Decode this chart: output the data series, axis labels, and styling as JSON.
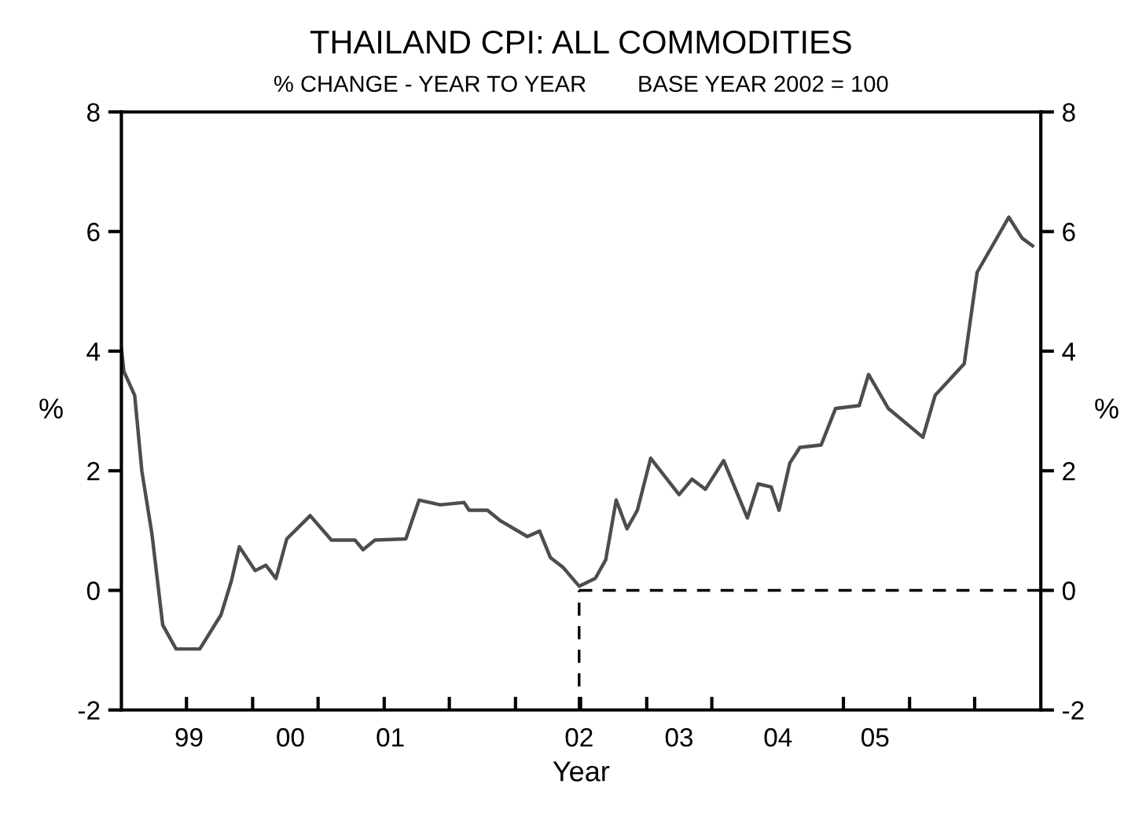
{
  "chart_data": {
    "type": "line",
    "title": "THAILAND CPI: ALL COMMODITIES",
    "subtitle": "% CHANGE - YEAR TO YEAR        BASE YEAR 2002 = 100",
    "xlabel": "Year",
    "ylabel": "%",
    "y2label": "%",
    "series": [
      {
        "color": "#4d4d4d",
        "x": [
          "1999-01-01",
          "1999-01-08",
          "1999-02-07",
          "1999-02-27",
          "1999-03-27",
          "1999-04-26",
          "1999-06-02",
          "1999-08-07",
          "1999-10-05",
          "1999-11-03",
          "1999-11-25",
          "2000-01-08",
          "2000-02-07",
          "2000-03-06",
          "2000-04-05",
          "2000-06-09",
          "2000-08-07",
          "2000-10-12",
          "2000-11-03",
          "2000-12-06",
          "2001-03-02",
          "2001-04-08",
          "2001-06-06",
          "2001-08-11",
          "2001-08-25",
          "2001-10-15",
          "2001-11-21",
          "2002-02-03",
          "2002-03-09",
          "2002-04-08",
          "2002-05-14",
          "2002-06-27",
          "2002-08-11",
          "2002-09-09",
          "2002-10-08",
          "2002-11-07",
          "2002-12-06",
          "2003-01-12",
          "2003-04-01",
          "2003-05-07",
          "2003-06-13",
          "2003-08-03",
          "2003-10-08",
          "2003-11-07",
          "2003-12-13",
          "2004-01-04",
          "2004-02-03",
          "2004-03-02",
          "2004-04-30",
          "2004-06-09",
          "2004-08-14",
          "2004-09-09",
          "2004-11-03",
          "2005-02-07",
          "2005-03-13",
          "2005-06-02",
          "2005-07-08",
          "2005-10-04",
          "2005-11-10",
          "2005-12-09"
        ],
        "values": [
          4.05,
          3.66,
          3.26,
          1.99,
          0.94,
          -0.58,
          -0.98,
          -0.98,
          -0.41,
          0.16,
          0.73,
          0.33,
          0.42,
          0.2,
          0.86,
          1.25,
          0.84,
          0.84,
          0.68,
          0.84,
          0.86,
          1.51,
          1.43,
          1.47,
          1.34,
          1.34,
          1.16,
          0.9,
          0.99,
          0.55,
          0.38,
          0.07,
          0.2,
          0.51,
          1.51,
          1.03,
          1.34,
          2.21,
          1.6,
          1.86,
          1.69,
          2.17,
          1.21,
          1.78,
          1.73,
          1.34,
          2.13,
          2.39,
          2.43,
          3.04,
          3.09,
          3.61,
          3.04,
          2.56,
          3.26,
          3.79,
          5.32,
          6.24,
          5.89,
          5.76
        ]
      }
    ],
    "xlim": [
      "1999-01-01",
      "2006-01-01"
    ],
    "xticks": [
      {
        "value": "1999-07-08",
        "label": "99"
      },
      {
        "value": "2000-04-15",
        "label": "00"
      },
      {
        "value": "2001-01-18",
        "label": "01"
      },
      {
        "value": "2002-06-27",
        "label": "02"
      },
      {
        "value": "2003-04-01",
        "label": "03"
      },
      {
        "value": "2004-01-01",
        "label": "04"
      },
      {
        "value": "2004-09-27",
        "label": "05"
      },
      {
        "value": "1999-07-01",
        "label": null
      },
      {
        "value": "2000-01-01",
        "label": null
      },
      {
        "value": "2000-07-01",
        "label": null
      },
      {
        "value": "2001-01-01",
        "label": null
      },
      {
        "value": "2001-07-01",
        "label": null
      },
      {
        "value": "2002-01-01",
        "label": null
      },
      {
        "value": "2002-07-01",
        "label": null
      },
      {
        "value": "2003-01-01",
        "label": null
      },
      {
        "value": "2003-07-01",
        "label": null
      },
      {
        "value": "2004-07-01",
        "label": null
      },
      {
        "value": "2005-01-01",
        "label": null
      },
      {
        "value": "2005-07-01",
        "label": null
      }
    ],
    "ylim": [
      -2,
      8
    ],
    "yticks": [
      -2,
      0,
      2,
      4,
      6,
      8
    ],
    "y2lim": [
      -2,
      8
    ],
    "y2ticks": [
      -2,
      0,
      2,
      4,
      6,
      8
    ],
    "ref_lines": [
      {
        "axis": "x",
        "value": "2002-06-27",
        "line_style": "dashed",
        "color": "#000000"
      },
      {
        "axis": "y",
        "value": 0,
        "line_style": "dashed",
        "color": "#000000"
      }
    ],
    "grid": false,
    "legend": false
  }
}
